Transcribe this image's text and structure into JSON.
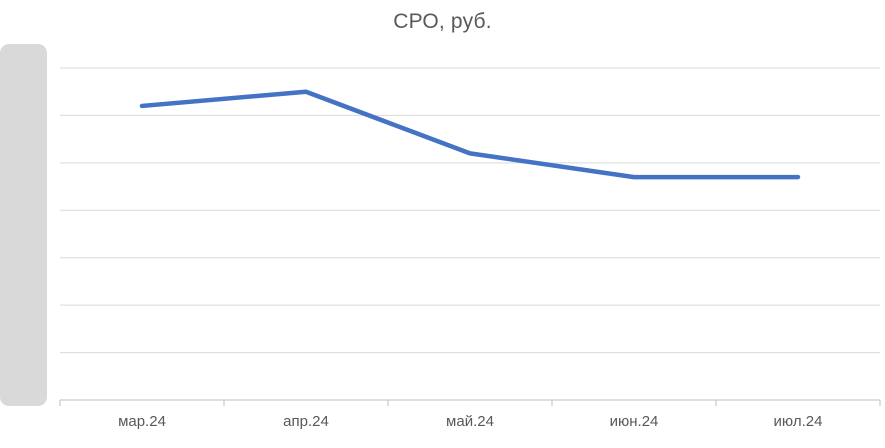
{
  "chart": {
    "title": "СРО, руб."
  },
  "colors": {
    "line": "#4472C4",
    "gridline": "#D9D9D9",
    "axis": "#BFBFBF",
    "title_text": "#595959",
    "tick_text": "#595959",
    "redaction_box": "#D9D9D9"
  },
  "chart_data": {
    "type": "line",
    "title": "СРО, руб.",
    "categories": [
      "мар.24",
      "апр.24",
      "май.24",
      "июн.24",
      "июл.24"
    ],
    "series": [
      {
        "name": "СРО, руб.",
        "values": [
          6.2,
          6.5,
          5.2,
          4.7,
          4.7
        ]
      }
    ],
    "xlabel": "",
    "ylabel": "",
    "ylim": [
      0,
      7
    ],
    "y_gridline_step": 1,
    "grid": true,
    "legend": "none",
    "y_axis_tick_labels": "obscured by gray overlay at left edge",
    "value_units": "relative gridline units (y-axis labels not visible)"
  }
}
